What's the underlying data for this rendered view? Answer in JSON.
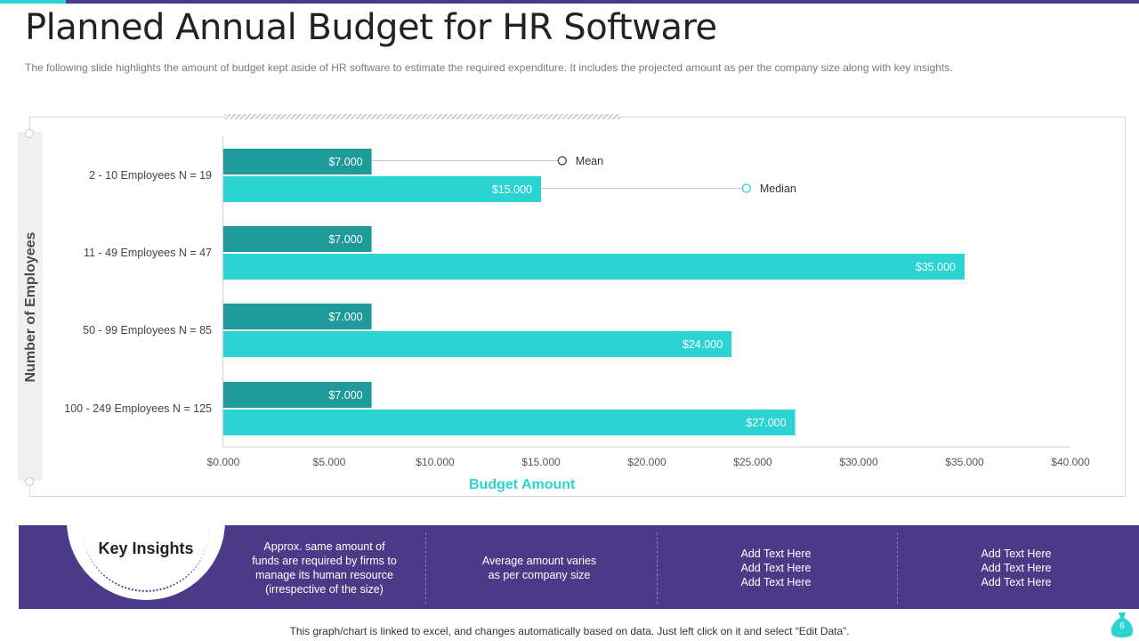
{
  "title": "Planned Annual Budget for HR Software",
  "subtitle": "The following  slide highlights the amount of budget kept aside of HR software to estimate the required  expenditure.  It includes the projected amount as per the company size along  with key insights.",
  "colors": {
    "mean": "#1f9a9a",
    "median": "#2bd3d3",
    "brand": "#4a3a87"
  },
  "chart_data": {
    "type": "bar",
    "orientation": "horizontal",
    "categories": [
      "2 - 10 Employees N = 19",
      "11 - 49 Employees N = 47",
      "50 - 99 Employees N = 85",
      "100 - 249 Employees N = 125"
    ],
    "series": [
      {
        "name": "Mean",
        "values": [
          7000,
          7000,
          7000,
          7000
        ],
        "labels": [
          "$7.000",
          "$7.000",
          "$7.000",
          "$7.000"
        ]
      },
      {
        "name": "Median",
        "values": [
          15000,
          35000,
          24000,
          27000
        ],
        "labels": [
          "$15.000",
          "$35.000",
          "$24.000",
          "$27.000"
        ]
      }
    ],
    "xlim": [
      0,
      40000
    ],
    "xticks": [
      0,
      5000,
      10000,
      15000,
      20000,
      25000,
      30000,
      35000,
      40000
    ],
    "xtick_labels": [
      "$0.000",
      "$5.000",
      "$10.000",
      "$15.000",
      "$20.000",
      "$25.000",
      "$30.000",
      "$35.000",
      "$40.000"
    ],
    "xlabel": "Budget Amount",
    "ylabel": "Number of Employees",
    "annotations": [
      {
        "text": "Mean",
        "series": "Mean",
        "category_index": 0,
        "x_value": 16000
      },
      {
        "text": "Median",
        "series": "Median",
        "category_index": 0,
        "x_value": 24700
      }
    ]
  },
  "insights": {
    "title": "Key Insights",
    "columns": [
      "Approx. same amount of\nfunds are required  by firms to\nmanage its human resource\n(irrespective  of the size)",
      "Average  amount varies\nas per company size",
      "Add Text Here\nAdd Text Here\nAdd Text Here",
      "Add Text Here\nAdd Text Here\nAdd Text Here"
    ]
  },
  "footer": "This graph/chart is linked to excel,  and changes automatically based on data. Just left click on it and select “Edit Data”.",
  "page_number": "6"
}
